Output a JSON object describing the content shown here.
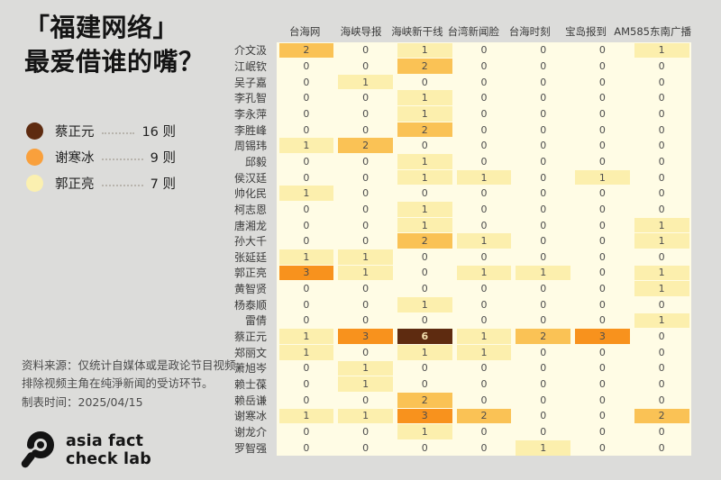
{
  "page": {
    "background": "#dcdcda"
  },
  "header": {
    "title_line1": "「福建网络」",
    "title_line2": "最爱借谁的嘴？"
  },
  "legend": {
    "items": [
      {
        "name": "蔡正元",
        "count": "16 则",
        "color": "#5e2b10"
      },
      {
        "name": "谢寒冰",
        "count": "9 则",
        "color": "#f9a03c"
      },
      {
        "name": "郭正亮",
        "count": "7 则",
        "color": "#fbf0b0"
      }
    ]
  },
  "source_note": {
    "line1": "资料来源：仅统计自媒体或是政论节目视频，",
    "line2": "排除视频主角在纯淨新闻的受访环节。",
    "line3": "制表时间：2025/04/15"
  },
  "logo": {
    "icon": "magnifier-icon",
    "line1": "asia fact",
    "line2": "check lab"
  },
  "chart_data": {
    "type": "heatmap",
    "title": "「福建网络」最爱借谁的嘴？",
    "columns": [
      "台海网",
      "海峡导报",
      "海峡新干线",
      "台湾新闻脸",
      "台海时刻",
      "宝岛报到",
      "AM585东南广播"
    ],
    "rows": [
      "介文汲",
      "江岷钦",
      "吴子嘉",
      "李孔智",
      "李永萍",
      "李胜峰",
      "周锡玮",
      "邱毅",
      "侯汉廷",
      "帅化民",
      "柯志恩",
      "唐湘龙",
      "孙大千",
      "张延廷",
      "郭正亮",
      "黄智贤",
      "杨泰顺",
      "雷倩",
      "蔡正元",
      "郑丽文",
      "萧旭岑",
      "赖士葆",
      "赖岳谦",
      "谢寒冰",
      "谢龙介",
      "罗智强"
    ],
    "values": [
      [
        2,
        0,
        1,
        0,
        0,
        0,
        1
      ],
      [
        0,
        0,
        2,
        0,
        0,
        0,
        0
      ],
      [
        0,
        1,
        0,
        0,
        0,
        0,
        0
      ],
      [
        0,
        0,
        1,
        0,
        0,
        0,
        0
      ],
      [
        0,
        0,
        1,
        0,
        0,
        0,
        0
      ],
      [
        0,
        0,
        2,
        0,
        0,
        0,
        0
      ],
      [
        1,
        2,
        0,
        0,
        0,
        0,
        0
      ],
      [
        0,
        0,
        1,
        0,
        0,
        0,
        0
      ],
      [
        0,
        0,
        1,
        1,
        0,
        1,
        0
      ],
      [
        1,
        0,
        0,
        0,
        0,
        0,
        0
      ],
      [
        0,
        0,
        1,
        0,
        0,
        0,
        0
      ],
      [
        0,
        0,
        1,
        0,
        0,
        0,
        1
      ],
      [
        0,
        0,
        2,
        1,
        0,
        0,
        1
      ],
      [
        1,
        1,
        0,
        0,
        0,
        0,
        0
      ],
      [
        3,
        1,
        0,
        1,
        1,
        0,
        1
      ],
      [
        0,
        0,
        0,
        0,
        0,
        0,
        1
      ],
      [
        0,
        0,
        1,
        0,
        0,
        0,
        0
      ],
      [
        0,
        0,
        0,
        0,
        0,
        0,
        1
      ],
      [
        1,
        3,
        6,
        1,
        2,
        3,
        0
      ],
      [
        1,
        0,
        1,
        1,
        0,
        0,
        0
      ],
      [
        0,
        1,
        0,
        0,
        0,
        0,
        0
      ],
      [
        0,
        1,
        0,
        0,
        0,
        0,
        0
      ],
      [
        0,
        0,
        2,
        0,
        0,
        0,
        0
      ],
      [
        1,
        1,
        3,
        2,
        0,
        0,
        2
      ],
      [
        0,
        0,
        1,
        0,
        0,
        0,
        0
      ],
      [
        0,
        0,
        0,
        0,
        1,
        0,
        0
      ]
    ],
    "color_scale": {
      "0": "#fffce5",
      "1": "#fcefad",
      "2": "#fac255",
      "3": "#f8921d",
      "6": "#5e2b10"
    },
    "table_background": "#fffce5",
    "cell_text_color": "#4d4d4d",
    "dark_cell_text_color": "#f3e0b0",
    "legend_position": "left",
    "grid": false
  }
}
